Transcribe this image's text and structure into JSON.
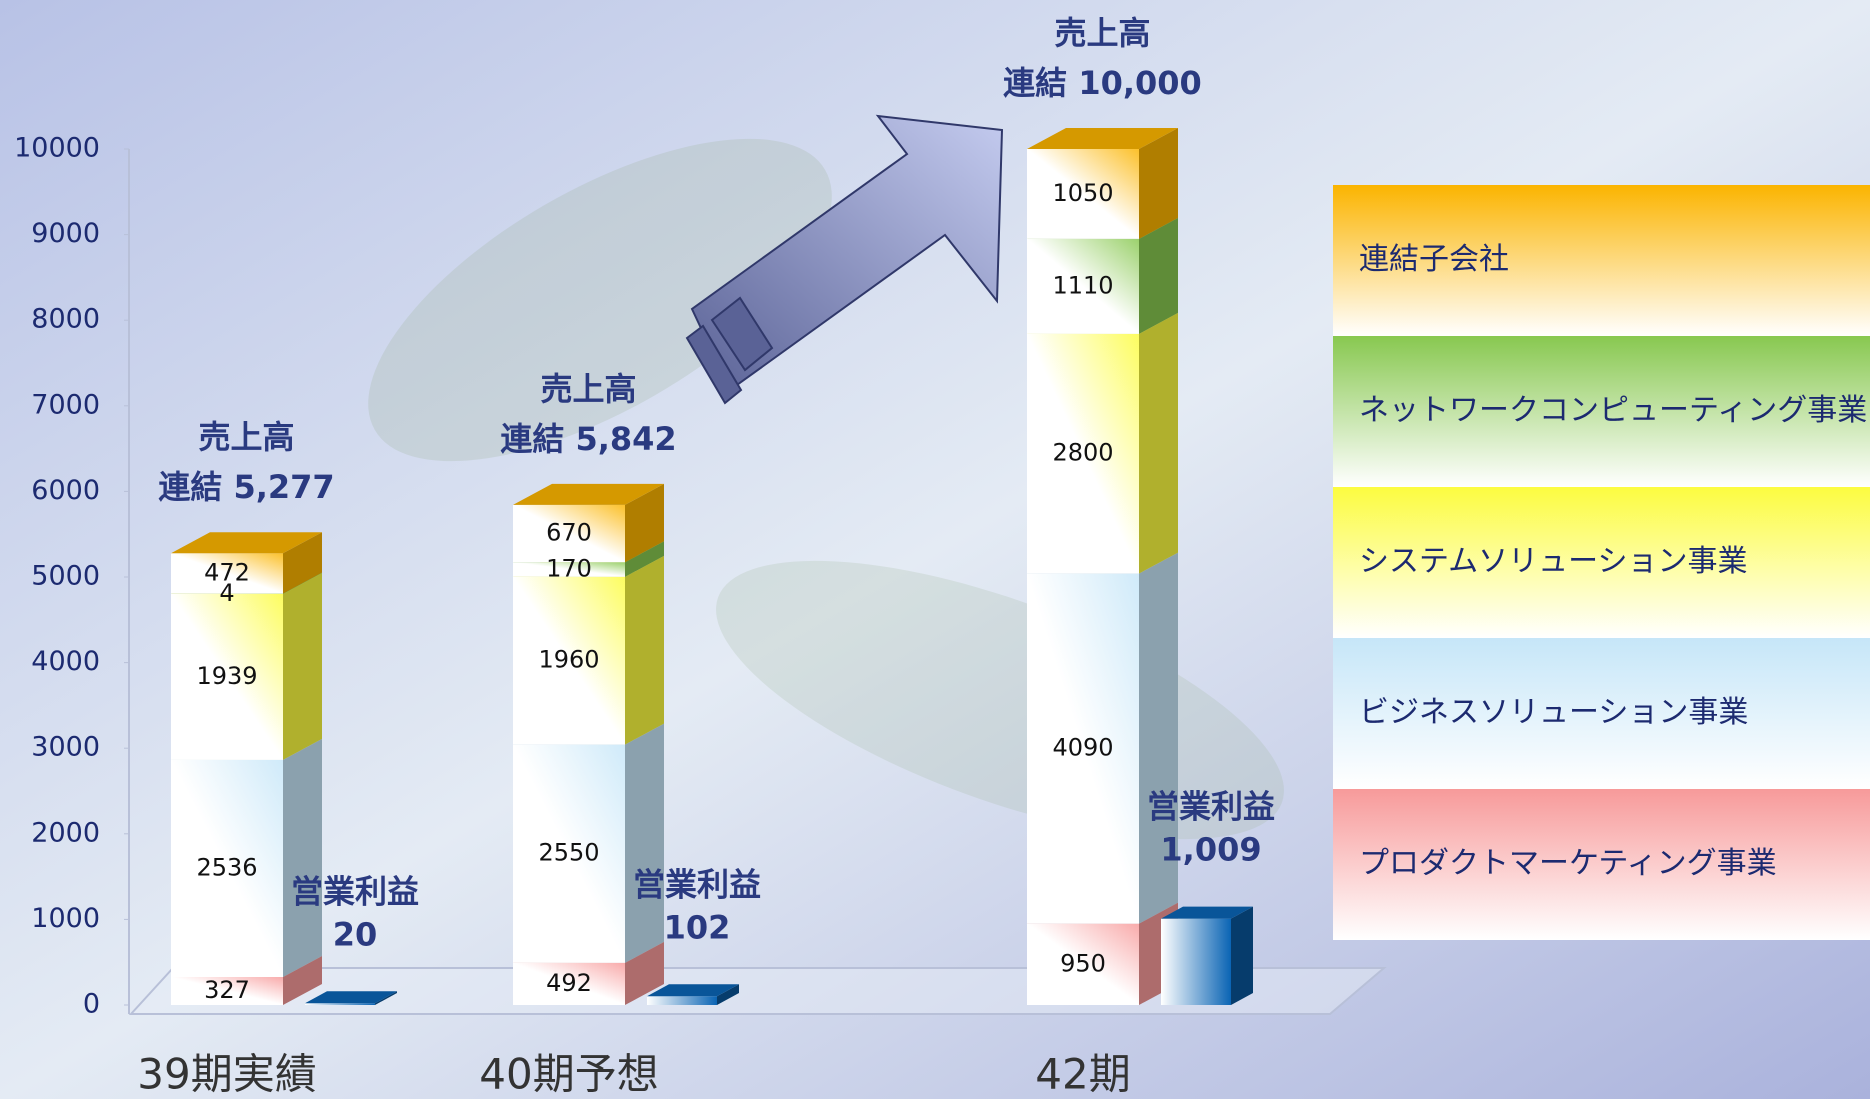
{
  "chart_data": {
    "type": "bar",
    "stacked": true,
    "categories": [
      "39期実績",
      "40期予想",
      "42期"
    ],
    "series": [
      {
        "name": "プロダクトマーケティング事業",
        "color": "#f79a9a",
        "values": [
          327,
          492,
          950
        ]
      },
      {
        "name": "ビジネスソリューション事業",
        "color": "#c6e6f8",
        "values": [
          2536,
          2550,
          4090
        ]
      },
      {
        "name": "システムソリューション事業",
        "color": "#fcfc40",
        "values": [
          1939,
          1960,
          2800
        ]
      },
      {
        "name": "ネットワークコンピューティング事業",
        "color": "#88c850",
        "values": [
          4,
          170,
          1110
        ]
      },
      {
        "name": "連結子会社",
        "color": "#fbb400",
        "values": [
          472,
          670,
          1050
        ]
      }
    ],
    "totals": {
      "title": "売上高",
      "values": [
        5277,
        5842,
        10000
      ],
      "value_labels": [
        "連結 5,277",
        "連結 5,842",
        "連結 10,000"
      ]
    },
    "profit": {
      "name": "営業利益",
      "color": "#0a64b4",
      "values": [
        20,
        102,
        1009
      ],
      "value_labels": [
        "20",
        "102",
        "1,009"
      ]
    },
    "ylim": [
      0,
      10000
    ],
    "yticks": [
      0,
      1000,
      2000,
      3000,
      4000,
      5000,
      6000,
      7000,
      8000,
      9000,
      10000
    ],
    "legend": "right"
  }
}
